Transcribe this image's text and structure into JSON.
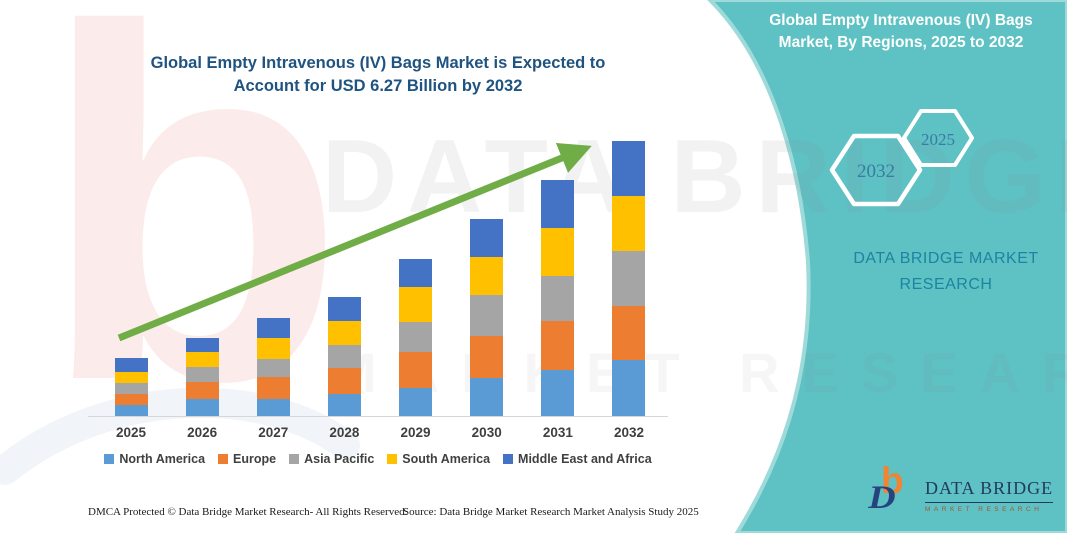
{
  "chart": {
    "title": "Global Empty Intravenous (IV) Bags Market is Expected to Account for USD 6.27 Billion by 2032"
  },
  "chart_data": {
    "type": "bar",
    "stacked": true,
    "title": "Global Empty Intravenous (IV) Bags Market is Expected to Account for USD 6.27 Billion by 2032",
    "unit": "USD Billion",
    "categories": [
      "2025",
      "2026",
      "2027",
      "2028",
      "2029",
      "2030",
      "2031",
      "2032"
    ],
    "series": [
      {
        "name": "North America",
        "color": "#5B9BD5",
        "values": [
          0.25,
          0.38,
          0.4,
          0.51,
          0.64,
          0.87,
          1.06,
          1.28
        ]
      },
      {
        "name": "Europe",
        "color": "#ED7D31",
        "values": [
          0.26,
          0.39,
          0.48,
          0.59,
          0.81,
          0.96,
          1.1,
          1.23
        ]
      },
      {
        "name": "Asia Pacific",
        "color": "#A5A5A5",
        "values": [
          0.25,
          0.35,
          0.43,
          0.53,
          0.7,
          0.92,
          1.03,
          1.25
        ]
      },
      {
        "name": "South America",
        "color": "#FFC000",
        "values": [
          0.25,
          0.33,
          0.46,
          0.53,
          0.8,
          0.87,
          1.1,
          1.27
        ]
      },
      {
        "name": "Middle East and Africa",
        "color": "#4472C4",
        "values": [
          0.32,
          0.33,
          0.46,
          0.56,
          0.63,
          0.87,
          1.09,
          1.24
        ]
      }
    ],
    "totals_by_year": [
      1.33,
      1.78,
      2.23,
      2.72,
      3.58,
      4.49,
      5.38,
      6.27
    ],
    "ylim": [
      0,
      6.6
    ],
    "grid": false,
    "legend_position": "bottom",
    "annotations": [
      "green upward trend arrow from 2025 to 2032"
    ],
    "trend_arrow_color": "#70AD47"
  },
  "side_panel": {
    "title": "Global Empty Intravenous (IV) Bags Market, By Regions, 2025 to 2032",
    "hexagon_large_label": "2032",
    "hexagon_small_label": "2025",
    "brand_line1": "DATA BRIDGE MARKET",
    "brand_line2": "RESEARCH",
    "background_color": "#5EC1C3"
  },
  "watermark": {
    "letter": "b",
    "line1": "DATA BRIDGE",
    "line2": "MARKET RESEARCH"
  },
  "logo": {
    "mark_b": "b",
    "mark_d": "D",
    "name": "DATA BRIDGE",
    "subtitle": "MARKET RESEARCH"
  },
  "footer": {
    "dmca": "DMCA Protected © Data Bridge Market Research-  All Rights Reserved.",
    "source": "Source: Data Bridge Market Research  Market Analysis Study 2025"
  }
}
